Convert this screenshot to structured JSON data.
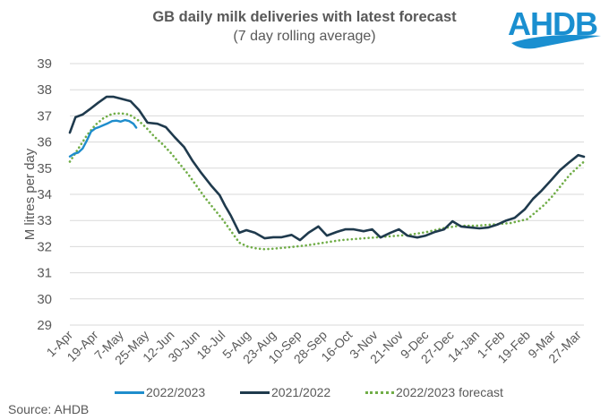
{
  "chart_data": {
    "type": "line",
    "title": "GB daily milk deliveries with latest forecast",
    "subtitle": "(7 day rolling average)",
    "xlabel": "",
    "ylabel": "M litres per day",
    "ylim": [
      29,
      39
    ],
    "yticks": [
      29,
      30,
      31,
      32,
      33,
      34,
      35,
      36,
      37,
      38,
      39
    ],
    "xlim_days": [
      0,
      364
    ],
    "xtick_labels": [
      "1-Apr",
      "19-Apr",
      "7-May",
      "25-May",
      "12-Jun",
      "30-Jun",
      "18-Jul",
      "5-Aug",
      "23-Aug",
      "10-Sep",
      "28-Sep",
      "16-Oct",
      "3-Nov",
      "21-Nov",
      "9-Dec",
      "27-Dec",
      "14-Jan",
      "1-Feb",
      "19-Feb",
      "9-Mar",
      "27-Mar"
    ],
    "xtick_days": [
      0,
      18,
      36,
      54,
      72,
      90,
      108,
      126,
      144,
      162,
      180,
      198,
      216,
      234,
      252,
      270,
      288,
      306,
      324,
      342,
      360
    ],
    "grid": true,
    "legend_position": "bottom",
    "series": [
      {
        "name": "2022/2023",
        "color": "#1f8dcc",
        "style": "solid",
        "x_days": [
          0,
          3,
          6,
          9,
          12,
          15,
          18,
          21,
          24,
          27,
          30,
          33,
          36,
          39,
          42,
          45,
          47
        ],
        "values": [
          35.45,
          35.55,
          35.6,
          35.75,
          36.05,
          36.4,
          36.52,
          36.58,
          36.65,
          36.72,
          36.8,
          36.82,
          36.78,
          36.84,
          36.8,
          36.7,
          36.55
        ]
      },
      {
        "name": "2021/2022",
        "color": "#1f3a4d",
        "style": "solid",
        "x_days": [
          0,
          4,
          9,
          14,
          20,
          26,
          31,
          36,
          43,
          49,
          55,
          62,
          68,
          74,
          81,
          87,
          93,
          100,
          106,
          110,
          114,
          120,
          125,
          131,
          138,
          144,
          150,
          157,
          163,
          169,
          176,
          182,
          189,
          195,
          201,
          208,
          214,
          220,
          227,
          233,
          239,
          246,
          252,
          258,
          265,
          271,
          277,
          284,
          290,
          296,
          303,
          309,
          315,
          322,
          328,
          334,
          341,
          347,
          353,
          360,
          364
        ],
        "values": [
          36.36,
          36.95,
          37.05,
          37.25,
          37.5,
          37.73,
          37.73,
          37.66,
          37.56,
          37.22,
          36.74,
          36.7,
          36.57,
          36.2,
          35.8,
          35.27,
          34.82,
          34.34,
          33.97,
          33.55,
          33.18,
          32.53,
          32.63,
          32.53,
          32.32,
          32.36,
          32.36,
          32.45,
          32.25,
          32.53,
          32.77,
          32.42,
          32.56,
          32.66,
          32.66,
          32.59,
          32.66,
          32.35,
          32.53,
          32.66,
          32.42,
          32.35,
          32.42,
          32.55,
          32.66,
          32.97,
          32.77,
          32.73,
          32.7,
          32.73,
          32.85,
          33.0,
          33.1,
          33.42,
          33.83,
          34.14,
          34.55,
          34.92,
          35.2,
          35.5,
          35.44
        ]
      },
      {
        "name": "2022/2023 forecast",
        "color": "#70ad47",
        "style": "dotted",
        "x_days": [
          0,
          6,
          12,
          18,
          24,
          30,
          36,
          42,
          48,
          54,
          60,
          66,
          72,
          78,
          84,
          90,
          96,
          102,
          108,
          114,
          120,
          126,
          132,
          138,
          144,
          156,
          168,
          180,
          192,
          204,
          216,
          228,
          240,
          252,
          264,
          276,
          288,
          300,
          312,
          324,
          336,
          342,
          348,
          354,
          360,
          364
        ],
        "values": [
          35.25,
          35.75,
          36.25,
          36.65,
          36.92,
          37.08,
          37.1,
          37.05,
          36.85,
          36.55,
          36.2,
          35.9,
          35.55,
          35.15,
          34.75,
          34.3,
          33.85,
          33.45,
          33.05,
          32.6,
          32.15,
          32.0,
          31.93,
          31.9,
          31.92,
          31.98,
          32.05,
          32.15,
          32.25,
          32.3,
          32.35,
          32.4,
          32.45,
          32.55,
          32.7,
          32.8,
          32.8,
          32.85,
          32.9,
          33.05,
          33.6,
          33.95,
          34.35,
          34.75,
          35.05,
          35.25
        ]
      }
    ]
  },
  "logo": {
    "text": "AHDB",
    "color": "#1a8fd0"
  },
  "source": "Source: AHDB"
}
